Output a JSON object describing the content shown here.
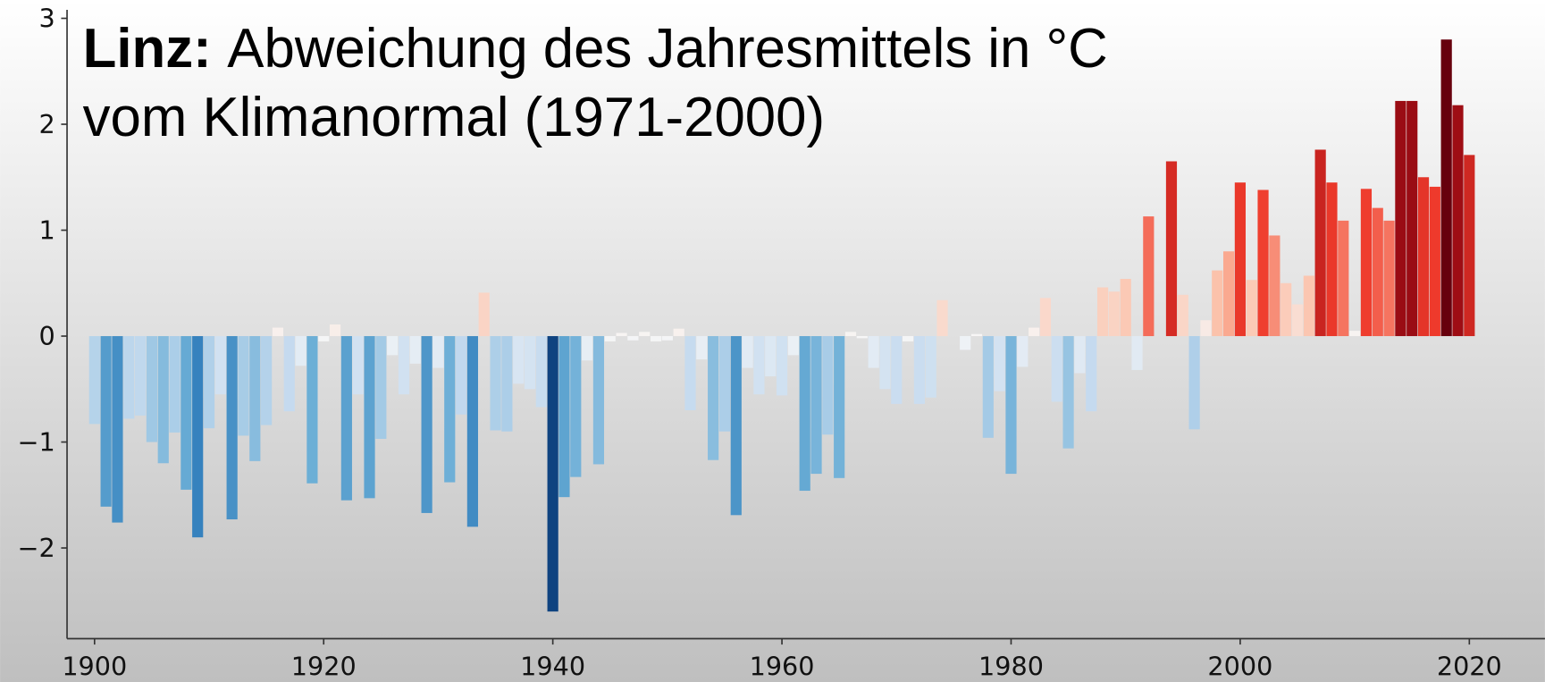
{
  "chart_data": {
    "type": "bar",
    "title_bold": "Linz:",
    "title": "Abweichung des Jahresmittels in °C",
    "subtitle": "vom Klimanormal (1971-2000)",
    "x": [
      1900,
      1901,
      1902,
      1903,
      1904,
      1905,
      1906,
      1907,
      1908,
      1909,
      1910,
      1911,
      1912,
      1913,
      1914,
      1915,
      1916,
      1917,
      1918,
      1919,
      1920,
      1921,
      1922,
      1923,
      1924,
      1925,
      1926,
      1927,
      1928,
      1929,
      1930,
      1931,
      1932,
      1933,
      1934,
      1935,
      1936,
      1937,
      1938,
      1939,
      1940,
      1941,
      1942,
      1943,
      1944,
      1945,
      1946,
      1947,
      1948,
      1949,
      1950,
      1951,
      1952,
      1953,
      1954,
      1955,
      1956,
      1957,
      1958,
      1959,
      1960,
      1961,
      1962,
      1963,
      1964,
      1965,
      1966,
      1967,
      1968,
      1969,
      1970,
      1971,
      1972,
      1973,
      1974,
      1975,
      1976,
      1977,
      1978,
      1979,
      1980,
      1981,
      1982,
      1983,
      1984,
      1985,
      1986,
      1987,
      1988,
      1989,
      1990,
      1991,
      1992,
      1993,
      1994,
      1995,
      1996,
      1997,
      1998,
      1999,
      2000,
      2001,
      2002,
      2003,
      2004,
      2005,
      2006,
      2007,
      2008,
      2009,
      2010,
      2011,
      2012,
      2013,
      2014,
      2015,
      2016,
      2017,
      2018,
      2019,
      2020
    ],
    "values": [
      -0.83,
      -1.61,
      -1.76,
      -0.78,
      -0.75,
      -1.0,
      -1.2,
      -0.91,
      -1.45,
      -1.9,
      -0.87,
      -0.55,
      -1.73,
      -0.94,
      -1.18,
      -0.84,
      0.08,
      -0.71,
      -0.28,
      -1.39,
      -0.05,
      0.11,
      -1.55,
      -0.55,
      -1.53,
      -0.97,
      -0.18,
      -0.55,
      -0.26,
      -1.67,
      -0.3,
      -1.38,
      -0.74,
      -1.8,
      0.41,
      -0.89,
      -0.9,
      -0.45,
      -0.5,
      -0.67,
      -2.6,
      -1.52,
      -1.33,
      -0.23,
      -1.21,
      -0.05,
      0.03,
      -0.04,
      0.04,
      -0.05,
      -0.04,
      0.07,
      -0.7,
      -0.22,
      -1.17,
      -0.9,
      -1.69,
      -0.3,
      -0.55,
      -0.38,
      -0.56,
      -0.18,
      -1.46,
      -1.3,
      -0.93,
      -1.34,
      0.04,
      -0.02,
      -0.3,
      -0.5,
      -0.64,
      -0.05,
      -0.64,
      -0.58,
      0.34,
      0.0,
      -0.13,
      0.02,
      -0.96,
      -0.52,
      -1.3,
      -0.29,
      0.08,
      0.36,
      -0.62,
      -1.06,
      -0.35,
      -0.71,
      0.46,
      0.42,
      0.54,
      -0.32,
      1.13,
      0.0,
      1.65,
      0.39,
      -0.88,
      0.15,
      0.62,
      0.8,
      1.45,
      0.53,
      1.38,
      0.95,
      0.5,
      0.3,
      0.57,
      1.76,
      1.45,
      1.09,
      0.05,
      1.39,
      1.21,
      1.09,
      2.22,
      2.22,
      1.5,
      1.41,
      2.8,
      2.18,
      1.71
    ],
    "colormap": [
      "#08306b",
      "#2171b5",
      "#6baed6",
      "#c6dbef",
      "#f7f7f7",
      "#fcbba1",
      "#ef3b2c",
      "#a50f15",
      "#67000d"
    ],
    "xlim": [
      1897.6,
      2026.6
    ],
    "ylim": [
      -2.856,
      3.08
    ],
    "xticks": [
      1900,
      1920,
      1940,
      1960,
      1980,
      2000,
      2020
    ],
    "yticks": [
      {
        "value": -2,
        "label": "−2"
      },
      {
        "value": -1,
        "label": "−1"
      },
      0,
      1,
      2,
      3
    ]
  }
}
